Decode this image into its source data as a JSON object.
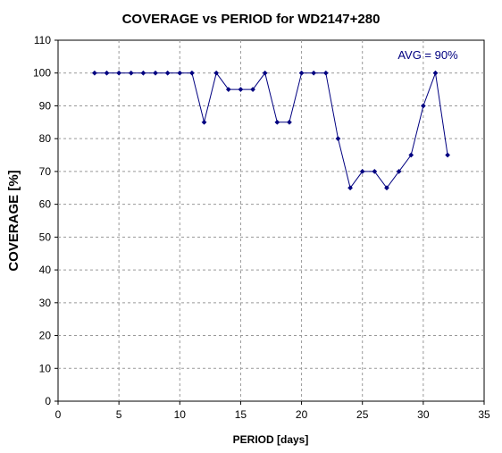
{
  "chart_data": {
    "type": "line",
    "title": "COVERAGE vs PERIOD for WD2147+280",
    "xlabel": "PERIOD [days]",
    "ylabel": "COVERAGE [%]",
    "xlim": [
      0,
      35
    ],
    "ylim": [
      0,
      110
    ],
    "xticks": [
      0,
      5,
      10,
      15,
      20,
      25,
      30,
      35
    ],
    "yticks": [
      0,
      10,
      20,
      30,
      40,
      50,
      60,
      70,
      80,
      90,
      100,
      110
    ],
    "grid": true,
    "legend": "none",
    "annotation": "AVG = 90%",
    "colors": {
      "line": "#000080",
      "marker": "#000080",
      "grid": "#999999",
      "annotation": "#000080"
    },
    "series": [
      {
        "x": [
          3,
          4,
          5,
          6,
          7,
          8,
          9,
          10,
          11,
          12,
          13,
          14,
          15,
          16,
          17,
          18,
          19,
          20,
          21,
          22,
          23,
          24,
          25,
          26,
          27,
          28,
          29,
          30,
          31,
          32
        ],
        "y": [
          100,
          100,
          100,
          100,
          100,
          100,
          100,
          100,
          100,
          85,
          100,
          95,
          95,
          95,
          100,
          85,
          85,
          100,
          100,
          100,
          80,
          65,
          70,
          70,
          65,
          70,
          75,
          90,
          100,
          75
        ]
      }
    ]
  }
}
